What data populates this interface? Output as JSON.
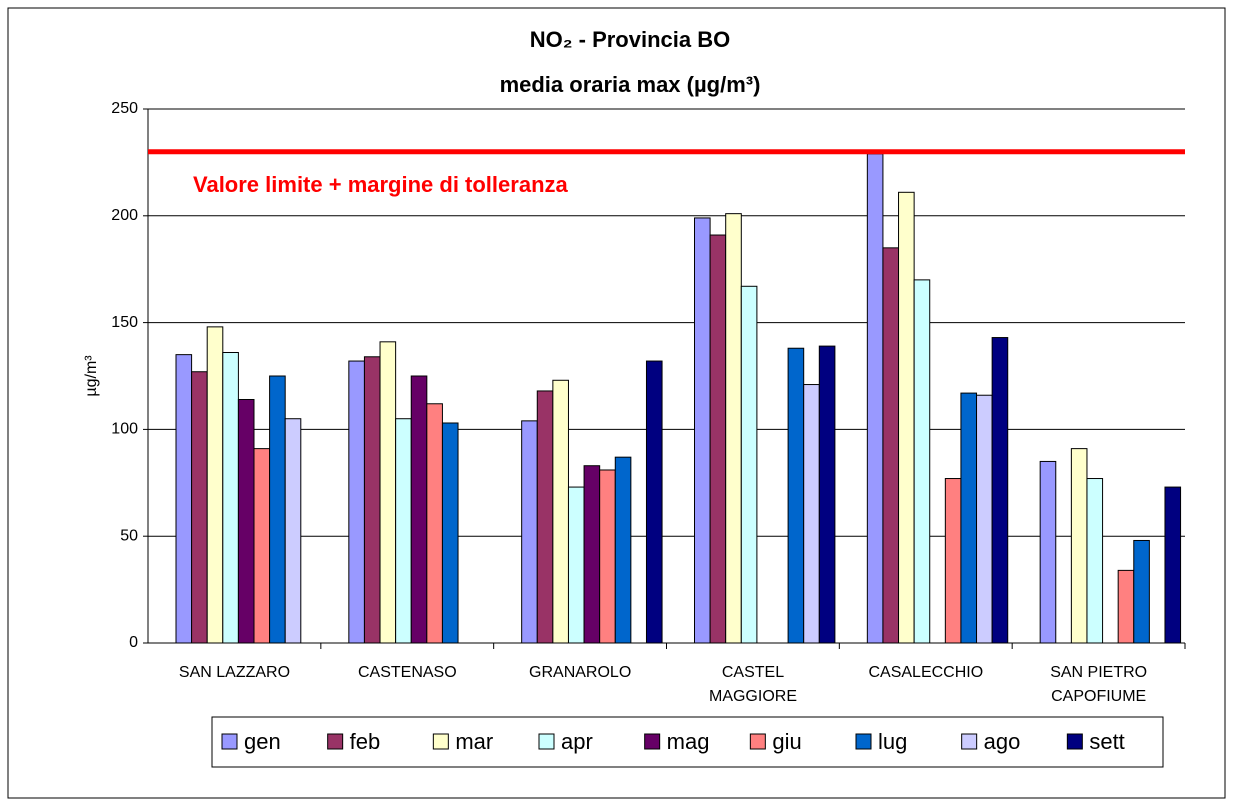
{
  "chart_data": {
    "type": "bar",
    "title": "NO₂ - Provincia BO",
    "subtitle": "media oraria max (µg/m³)",
    "y_label": "µg/m³",
    "annotation": {
      "text": "Valore limite + margine di tolleranza",
      "value": 230,
      "color": "#ff0000"
    },
    "categories": [
      "SAN LAZZARO",
      "CASTENASO",
      "GRANAROLO",
      "CASTEL\nMAGGIORE",
      "CASALECCHIO",
      "SAN PIETRO\nCAPOFIUME"
    ],
    "series": [
      {
        "name": "gen",
        "color": "#9999ff",
        "values": [
          135,
          132,
          104,
          199,
          229,
          85
        ]
      },
      {
        "name": "feb",
        "color": "#993366",
        "values": [
          127,
          134,
          118,
          191,
          185,
          null
        ]
      },
      {
        "name": "mar",
        "color": "#ffffcc",
        "values": [
          148,
          141,
          123,
          201,
          211,
          91
        ]
      },
      {
        "name": "apr",
        "color": "#ccffff",
        "values": [
          136,
          105,
          73,
          167,
          170,
          77
        ]
      },
      {
        "name": "mag",
        "color": "#660066",
        "values": [
          114,
          125,
          83,
          null,
          null,
          null
        ]
      },
      {
        "name": "giu",
        "color": "#ff8080",
        "values": [
          91,
          112,
          81,
          null,
          77,
          34
        ]
      },
      {
        "name": "lug",
        "color": "#0066cc",
        "values": [
          125,
          103,
          87,
          138,
          117,
          48
        ]
      },
      {
        "name": "ago",
        "color": "#ccccff",
        "values": [
          105,
          null,
          null,
          121,
          116,
          null
        ]
      },
      {
        "name": "sett",
        "color": "#000080",
        "values": [
          null,
          null,
          132,
          139,
          143,
          73
        ]
      }
    ],
    "ylim": [
      0,
      250
    ],
    "yticks": [
      0,
      50,
      100,
      150,
      200,
      250
    ],
    "grid": true,
    "legend": "bottom"
  }
}
